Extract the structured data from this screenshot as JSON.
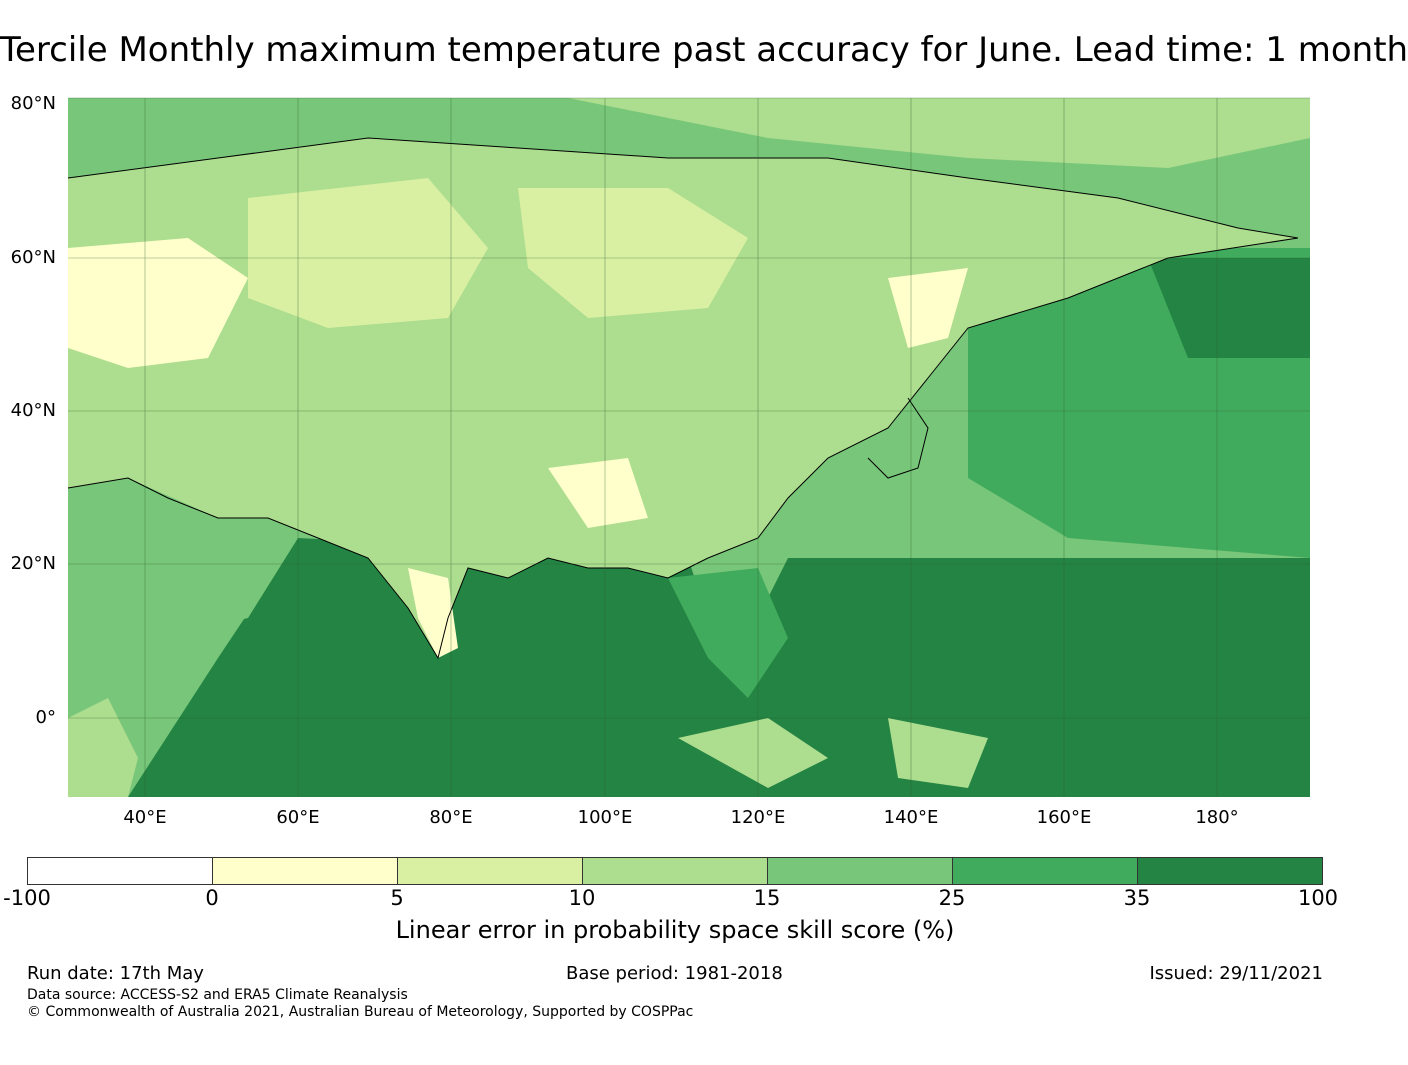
{
  "title": "Tercile Monthly maximum temperature past accuracy for June. Lead time: 1 month",
  "map": {
    "latitude_labels": [
      "80°N",
      "60°N",
      "40°N",
      "20°N",
      "0°"
    ],
    "longitude_labels": [
      "40°E",
      "60°E",
      "80°E",
      "100°E",
      "120°E",
      "140°E",
      "160°E",
      "180°"
    ],
    "fill_colors": {
      "ocean_low": "#a3d97f",
      "ocean_mid": "#5bb867",
      "ocean_high": "#238643",
      "land_low": "#fefecc",
      "land_mid": "#d8efa3",
      "outline": "#000000",
      "grid": "#2f5f2f"
    }
  },
  "colorbar": {
    "ticks": [
      "-100",
      "0",
      "5",
      "10",
      "15",
      "25",
      "35",
      "100"
    ],
    "colors": [
      "#ffffff",
      "#ffffcc",
      "#d9f0a3",
      "#addd8e",
      "#78c679",
      "#41ab5d",
      "#238443"
    ],
    "label": "Linear error in probability space skill score (%)"
  },
  "footer": {
    "run_date": "Run date: 17th May",
    "base_period": "Base period: 1981-2018",
    "issued": "Issued: 29/11/2021",
    "data_source": "Data source: ACCESS-S2 and ERA5 Climate Reanalysis",
    "copyright": "© Commonwealth of Australia 2021, Australian Bureau of Meteorology, Supported by COSPPac"
  }
}
